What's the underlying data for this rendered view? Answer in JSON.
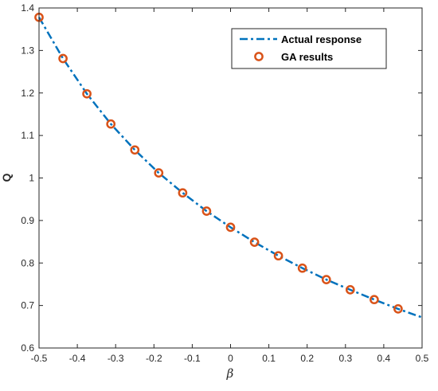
{
  "chart_data": {
    "type": "line",
    "xlabel": "β",
    "ylabel": "Q",
    "xlim": [
      -0.5,
      0.5
    ],
    "ylim": [
      0.6,
      1.4
    ],
    "x_ticks": [
      "-0.5",
      "-0.4",
      "-0.3",
      "-0.2",
      "-0.1",
      "0",
      "0.1",
      "0.2",
      "0.3",
      "0.4",
      "0.5"
    ],
    "y_ticks": [
      "0.6",
      "0.7",
      "0.8",
      "0.9",
      "1",
      "1.1",
      "1.2",
      "1.3",
      "1.4"
    ],
    "grid": false,
    "legend_position": "top-right",
    "series": [
      {
        "name": "Actual response",
        "style": "dash-dot line",
        "color": "#0072BD",
        "x": [
          -0.5,
          -0.4375,
          -0.375,
          -0.3125,
          -0.25,
          -0.1875,
          -0.125,
          -0.0625,
          0,
          0.0625,
          0.125,
          0.1875,
          0.25,
          0.3125,
          0.375,
          0.4375,
          0.5
        ],
        "y": [
          1.378,
          1.281,
          1.198,
          1.127,
          1.066,
          1.012,
          0.965,
          0.922,
          0.884,
          0.849,
          0.817,
          0.788,
          0.761,
          0.737,
          0.714,
          0.692,
          0.672
        ]
      },
      {
        "name": "GA results",
        "style": "circle markers",
        "color": "#D95319",
        "x": [
          -0.5,
          -0.4375,
          -0.375,
          -0.3125,
          -0.25,
          -0.1875,
          -0.125,
          -0.0625,
          0,
          0.0625,
          0.125,
          0.1875,
          0.25,
          0.3125,
          0.375,
          0.4375
        ],
        "y": [
          1.378,
          1.281,
          1.198,
          1.127,
          1.066,
          1.012,
          0.965,
          0.922,
          0.884,
          0.849,
          0.817,
          0.788,
          0.761,
          0.737,
          0.714,
          0.692
        ]
      }
    ]
  }
}
